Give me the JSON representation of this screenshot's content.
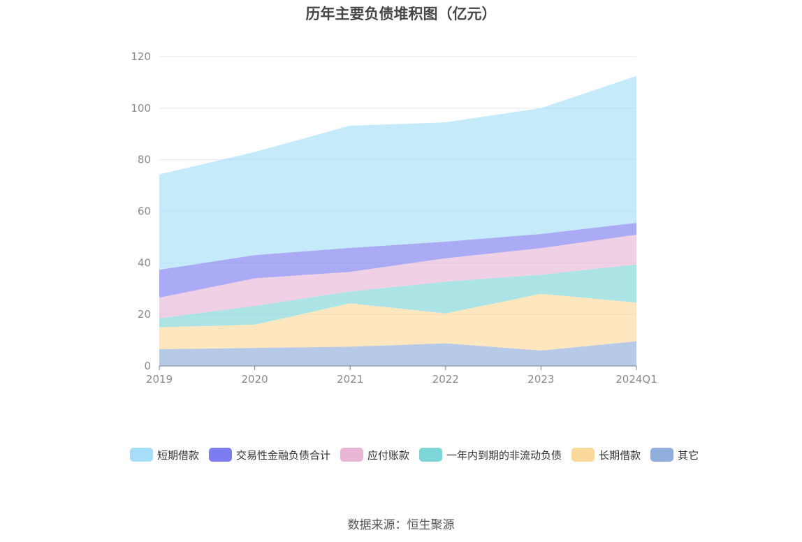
{
  "title": "历年主要负债堆积图（亿元）",
  "source": "数据来源：恒生聚源",
  "chart_data": {
    "type": "area",
    "stacked": true,
    "categories": [
      "2019",
      "2020",
      "2021",
      "2022",
      "2023",
      "2024Q1"
    ],
    "ylim": [
      0,
      120
    ],
    "yticks": [
      0,
      20,
      40,
      60,
      80,
      100,
      120
    ],
    "grid": true,
    "legend_position": "bottom",
    "series": [
      {
        "name": "其它",
        "color": "#8faedc",
        "values": [
          6.5,
          7,
          7.5,
          8.8,
          6,
          9.6
        ]
      },
      {
        "name": "长期借款",
        "color": "#fdd89b",
        "values": [
          8.5,
          9,
          16.8,
          11.6,
          22,
          15
        ]
      },
      {
        "name": "一年内到期的非流动负债",
        "color": "#7fd6d8",
        "values": [
          3.5,
          7.3,
          4.6,
          12.3,
          7.4,
          14.8
        ]
      },
      {
        "name": "应付账款",
        "color": "#e8b7d6",
        "values": [
          8,
          10.7,
          7.6,
          9.1,
          10.3,
          11.5
        ]
      },
      {
        "name": "交易性金融负债合计",
        "color": "#7c7cf0",
        "values": [
          10.8,
          9,
          9.3,
          6.4,
          5.5,
          4.6
        ]
      },
      {
        "name": "短期借款",
        "color": "#a6def8",
        "values": [
          37,
          40,
          47.4,
          46.3,
          48.8,
          57
        ]
      }
    ]
  },
  "legend_order": [
    "短期借款",
    "交易性金融负债合计",
    "应付账款",
    "一年内到期的非流动负债",
    "长期借款",
    "其它"
  ]
}
